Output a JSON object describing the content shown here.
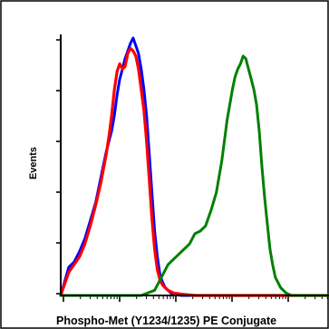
{
  "chart_data": {
    "type": "line",
    "title": "",
    "xlabel": "Phospho-Met (Y1234/1235) PE Conjugate",
    "ylabel": "Events",
    "xscale": "log",
    "xlim": [
      0,
      100
    ],
    "ylim": [
      0,
      100
    ],
    "grid": false,
    "legend": "none",
    "series": [
      {
        "color": "#0000ff",
        "x": [
          0,
          3,
          5,
          7,
          9,
          11,
          13,
          15,
          17,
          19,
          20,
          21,
          22,
          23,
          24,
          25,
          26,
          27,
          28,
          29,
          30,
          31,
          32,
          33,
          34,
          35,
          36,
          37,
          38,
          39,
          40,
          41,
          42,
          45,
          50,
          60,
          100
        ],
        "y": [
          0,
          11,
          13,
          17,
          22,
          29,
          36,
          46,
          56,
          64,
          70,
          78,
          84,
          88,
          92,
          95,
          98,
          100,
          97,
          94,
          88,
          80,
          70,
          55,
          40,
          25,
          15,
          8,
          5,
          3,
          2,
          1,
          0.5,
          0,
          0,
          0,
          0
        ]
      },
      {
        "color": "#ff0000",
        "x": [
          0,
          3,
          5,
          7,
          9,
          11,
          13,
          15,
          17,
          18,
          19,
          20,
          21,
          22,
          23,
          24,
          25,
          26,
          27,
          28,
          29,
          30,
          31,
          32,
          33,
          34,
          35,
          36,
          37,
          38,
          39,
          40,
          42,
          45,
          50,
          60,
          100
        ],
        "y": [
          0,
          9,
          12,
          15,
          20,
          27,
          35,
          44,
          55,
          62,
          70,
          80,
          87,
          90,
          88,
          89,
          94,
          96,
          95,
          93,
          88,
          80,
          72,
          60,
          45,
          30,
          18,
          10,
          6,
          4,
          3,
          2,
          1,
          0.5,
          0,
          0,
          0
        ]
      },
      {
        "color": "#008000",
        "x": [
          0,
          20,
          25,
          30,
          35,
          38,
          40,
          42,
          45,
          48,
          50,
          52,
          54,
          56,
          58,
          60,
          61,
          62,
          63,
          64,
          65,
          66,
          67,
          68,
          69,
          70,
          71,
          72,
          73,
          74,
          75,
          76,
          77,
          78,
          79,
          80,
          82,
          84,
          86,
          90,
          100
        ],
        "y": [
          0,
          0,
          0,
          0,
          2,
          8,
          12,
          14,
          17,
          20,
          24,
          25,
          27,
          33,
          40,
          52,
          60,
          68,
          74,
          80,
          85,
          88,
          90,
          93,
          92,
          88,
          84,
          80,
          74,
          64,
          50,
          38,
          28,
          18,
          12,
          7,
          3,
          1,
          0,
          0,
          0
        ]
      }
    ]
  }
}
